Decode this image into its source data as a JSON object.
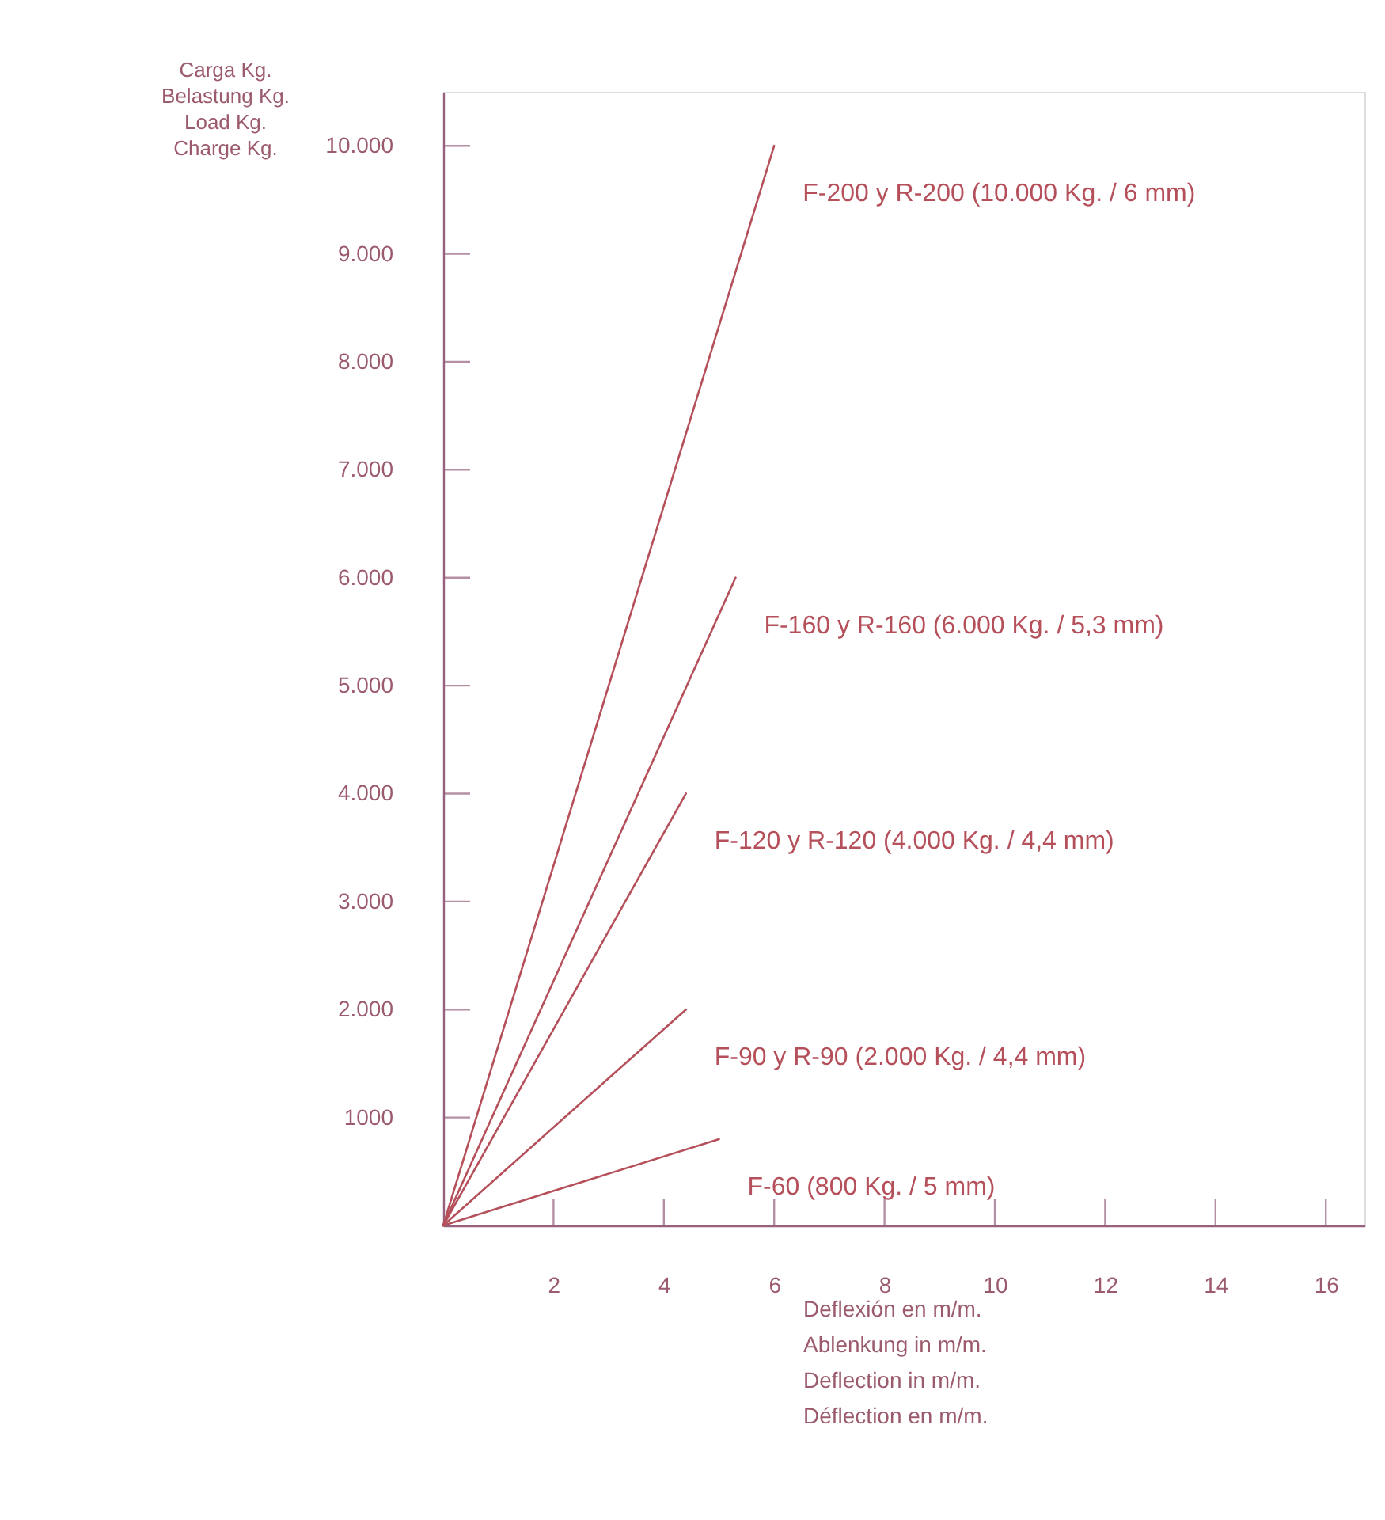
{
  "chart_data": {
    "type": "line",
    "xlabel": "Deflexión en m/m.\nAblenkung in m/m.\nDeflection in m/m.\nDéflection en m/m.",
    "ylabel": "Carga Kg.\nBelastung Kg.\nLoad Kg.\nCharge Kg.",
    "xlim": [
      0,
      16.7
    ],
    "ylim": [
      0,
      10500
    ],
    "xticks": [
      2,
      4,
      6,
      8,
      10,
      12,
      14,
      16
    ],
    "yticks": [
      1000,
      {
        "value": 2000,
        "label": "2.000"
      },
      {
        "value": 3000,
        "label": "3.000"
      },
      {
        "value": 4000,
        "label": "4.000"
      },
      {
        "value": 5000,
        "label": "5.000"
      },
      {
        "value": 6000,
        "label": "6.000"
      },
      {
        "value": 7000,
        "label": "7.000"
      },
      {
        "value": 8000,
        "label": "8.000"
      },
      {
        "value": 9000,
        "label": "9.000"
      },
      {
        "value": 10000,
        "label": "10.000"
      }
    ],
    "grid": false,
    "legend": false,
    "marker": "none",
    "line_style": "solid",
    "series": [
      {
        "name": "F-200 y R-200 (10.000 Kg. / 6 mm)",
        "color": "#b5505b",
        "x": [
          0,
          6
        ],
        "values": [
          0,
          10000
        ]
      },
      {
        "name": "F-160 y R-160 (6.000 Kg. / 5,3 mm)",
        "color": "#b5505b",
        "x": [
          0,
          5.3
        ],
        "values": [
          0,
          6000
        ]
      },
      {
        "name": "F-120 y R-120 (4.000 Kg. / 4,4 mm)",
        "color": "#b5505b",
        "x": [
          0,
          4.4
        ],
        "values": [
          0,
          4000
        ]
      },
      {
        "name": "F-90 y R-90 (2.000 Kg. / 4,4 mm)",
        "color": "#b5505b",
        "x": [
          0,
          4.4
        ],
        "values": [
          0,
          2000
        ]
      },
      {
        "name": "F-60 (800 Kg. / 5 mm)",
        "color": "#b5505b",
        "x": [
          0,
          5
        ],
        "values": [
          0,
          800
        ]
      }
    ]
  }
}
